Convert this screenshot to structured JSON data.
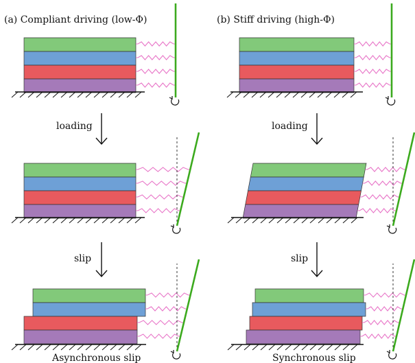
{
  "panels": [
    {
      "id": "a",
      "title": "(a) Compliant driving (low-Φ)",
      "stage1_label": "loading",
      "stage2_label": "slip",
      "caption": "Asynchronous slip"
    },
    {
      "id": "b",
      "title": "(b) Stiff driving (high-Φ)",
      "stage1_label": "loading",
      "stage2_label": "slip",
      "caption": "Synchronous slip"
    }
  ],
  "colors": {
    "layer_top": "#82c97a",
    "layer_2": "#6ea0d6",
    "layer_3": "#e85a5e",
    "layer_bottom": "#a57ab9",
    "spring": "#e876c8",
    "driver": "#3caa1e",
    "ground": "#111111",
    "dashed_guide": "#222222"
  },
  "icons": {
    "arrow_down": "down-arrow-icon",
    "rotation": "rotation-arrow-icon"
  }
}
